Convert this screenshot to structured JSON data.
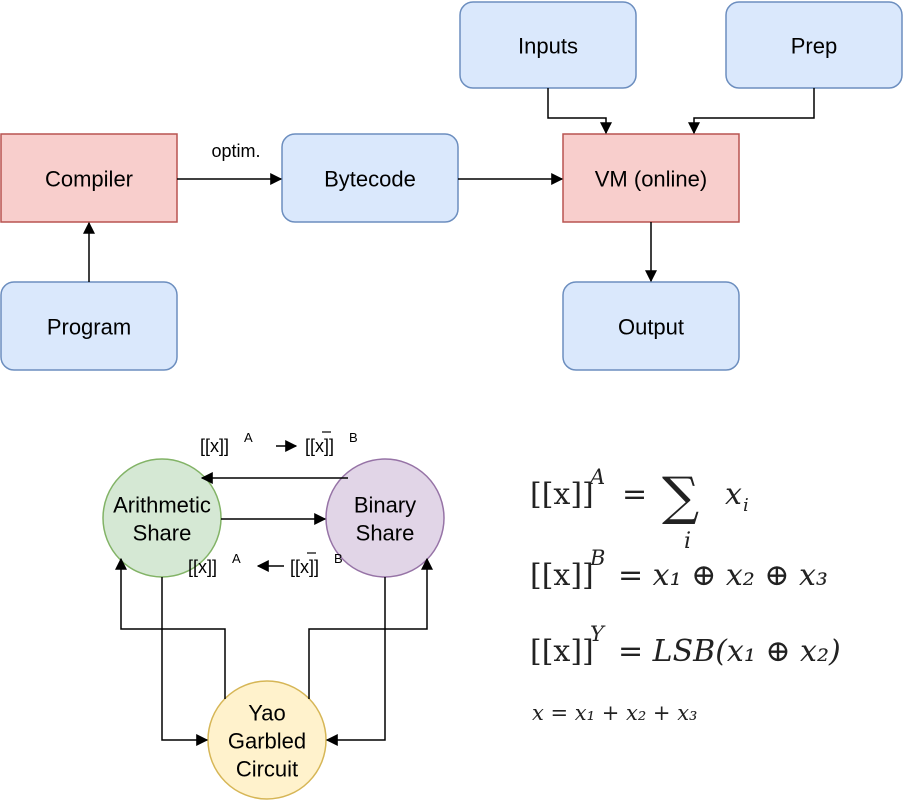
{
  "colors": {
    "blue_fill": "#dae8fc",
    "blue_stroke": "#6c8ebf",
    "red_fill": "#f8cecc",
    "red_stroke": "#b85450",
    "green_fill": "#d5e8d4",
    "green_stroke": "#82b366",
    "purple_fill": "#e1d5e7",
    "purple_stroke": "#9673a6",
    "yellow_fill": "#fff2cc",
    "yellow_stroke": "#d6b656"
  },
  "pipeline": {
    "inputs": "Inputs",
    "prep": "Prep",
    "compiler": "Compiler",
    "optim_label": "optim.",
    "bytecode": "Bytecode",
    "vm": "VM (online)",
    "program": "Program",
    "output": "Output"
  },
  "shares": {
    "arithmetic": [
      "Arithmetic",
      "Share"
    ],
    "binary": [
      "Binary",
      "Share"
    ],
    "yao": [
      "Yao",
      "Garbled",
      "Circuit"
    ],
    "top_label": {
      "left_base": "[[x]]",
      "left_sup": "A",
      "arrow": "→",
      "right_base": "[[x]]",
      "right_sup": "B"
    },
    "bottom_label": {
      "left_base": "[[x]]",
      "left_sup": "A",
      "arrow": "←",
      "right_base": "[[x]]",
      "right_sup": "B"
    }
  },
  "equations": {
    "eq1": {
      "lhs": "[[x]]",
      "sup": "A",
      "rhs_op": "=",
      "sum_index": "i",
      "term": "x",
      "term_sub": "i"
    },
    "eq2": {
      "lhs": "[[x]]",
      "sup": "B",
      "rhs": "= x₁ ⊕ x₂ ⊕ x₃"
    },
    "eq3": {
      "lhs": "[[x]]",
      "sup": "Y",
      "rhs": "= LSB(x₁ ⊕ x₂)"
    },
    "eq4": {
      "text": "x = x₁ + x₂ + x₃"
    }
  }
}
